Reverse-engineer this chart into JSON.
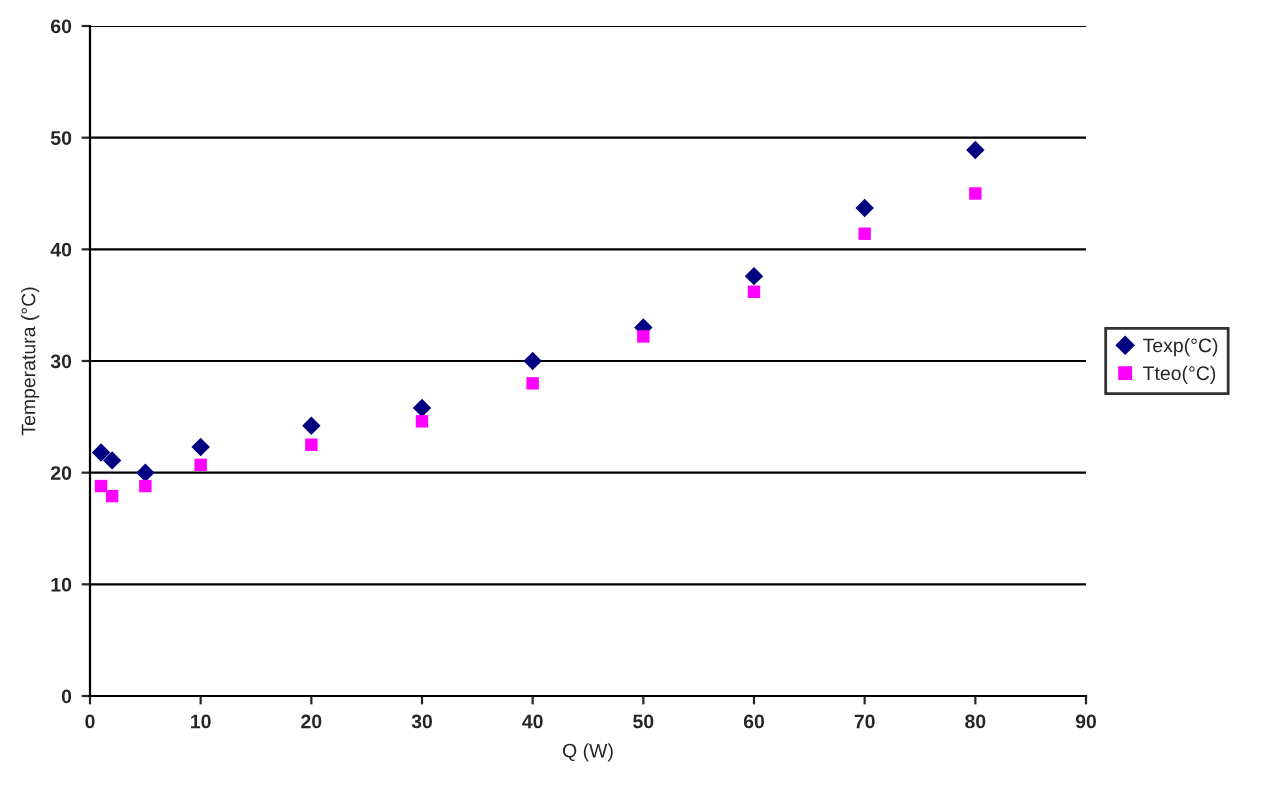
{
  "chart_data": {
    "type": "scatter",
    "xlabel": "Q (W)",
    "ylabel": "Temperatura (°C)",
    "x": [
      1,
      2,
      5,
      10,
      20,
      30,
      40,
      50,
      60,
      70,
      80
    ],
    "series": [
      {
        "name": "Texp(°C)",
        "color": "#000080",
        "marker": "diamond",
        "values": [
          21.8,
          21.1,
          20.0,
          22.3,
          24.2,
          25.8,
          30.0,
          33.0,
          37.6,
          43.7,
          48.9
        ]
      },
      {
        "name": "Tteo(°C)",
        "color": "#ff00ff",
        "marker": "square",
        "values": [
          18.8,
          17.9,
          18.8,
          20.7,
          22.5,
          24.6,
          28.0,
          32.2,
          36.2,
          41.4,
          45.0
        ]
      }
    ],
    "xlim": [
      0,
      90
    ],
    "xticks": [
      0,
      10,
      20,
      30,
      40,
      50,
      60,
      70,
      80,
      90
    ],
    "ylim": [
      0,
      60
    ],
    "yticks": [
      0,
      10,
      20,
      30,
      40,
      50,
      60
    ],
    "grid": "y",
    "legend": "right"
  }
}
